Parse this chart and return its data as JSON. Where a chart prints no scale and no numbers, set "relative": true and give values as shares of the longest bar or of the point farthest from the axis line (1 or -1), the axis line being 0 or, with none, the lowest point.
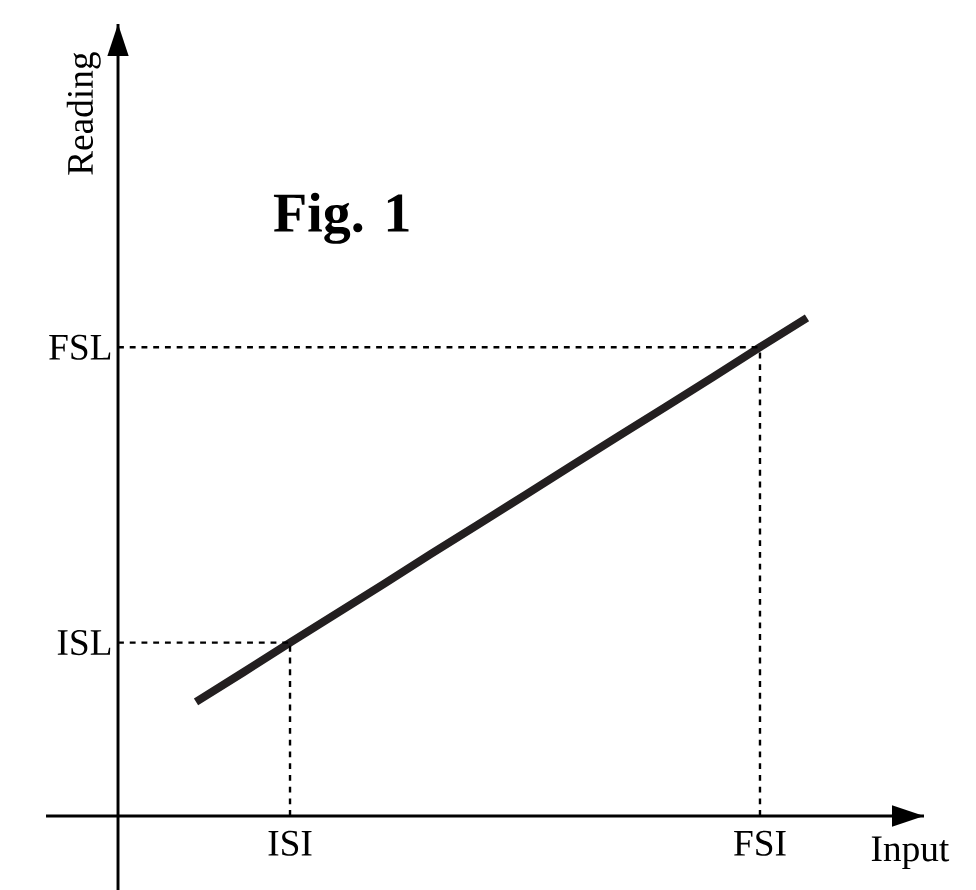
{
  "chart_data": {
    "type": "line",
    "relative": true,
    "title": "Fig. 1",
    "xlabel": "Input",
    "ylabel": "Reading",
    "categories": [
      null,
      null,
      "ISI",
      null,
      null,
      null,
      null,
      null,
      null,
      null,
      null,
      null,
      "FSI",
      null
    ],
    "series": [
      {
        "color": "#231f20",
        "values": [
          0.229,
          0.288,
          0.348,
          0.407,
          0.466,
          0.526,
          0.585,
          0.644,
          0.704,
          0.763,
          0.822,
          0.881,
          0.941,
          1
        ]
      }
    ],
    "ref_lines": [
      {
        "axis": "y",
        "value": 0.348,
        "label": "ISL",
        "line_style": "dashed"
      },
      {
        "axis": "y",
        "value": 0.941,
        "label": "FSL",
        "line_style": "dashed"
      },
      {
        "axis": "x",
        "value": "ISI",
        "line_style": "dashed"
      },
      {
        "axis": "x",
        "value": "FSI",
        "line_style": "dashed"
      }
    ]
  }
}
